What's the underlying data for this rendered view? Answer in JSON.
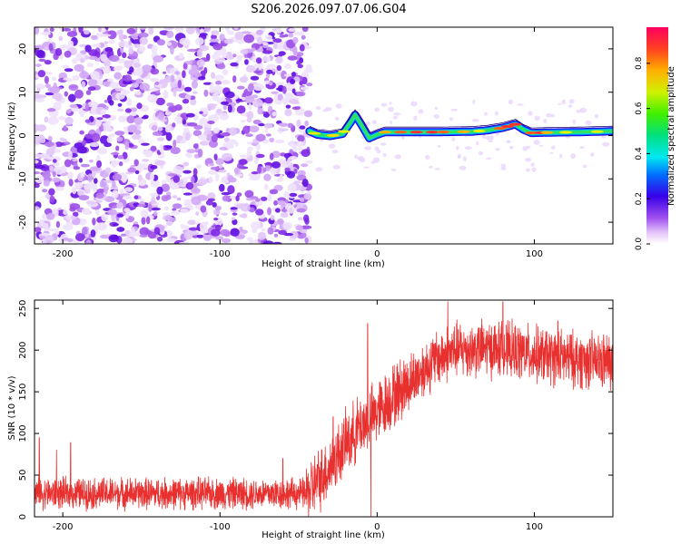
{
  "figure_title": "S206.2026.097.07.06.G04",
  "chart_data": [
    {
      "type": "heatmap",
      "title": "",
      "xlabel": "Height of straight line (km)",
      "ylabel": "Frequency (Hz)",
      "xlim": [
        -218,
        150
      ],
      "ylim": [
        -25,
        25
      ],
      "xticks": [
        -200,
        -100,
        0,
        100
      ],
      "yticks": [
        -20,
        -10,
        0,
        10,
        20
      ],
      "grid": false,
      "noise_region_x": [
        -218,
        -43
      ],
      "band": {
        "x_start": -43,
        "x_end": 150,
        "center_hz": [
          [
            -43,
            1.0
          ],
          [
            -38,
            0.2
          ],
          [
            -30,
            -0.1
          ],
          [
            -22,
            0.4
          ],
          [
            -17,
            3.0
          ],
          [
            -14,
            4.8
          ],
          [
            -10,
            2.5
          ],
          [
            -5,
            -0.6
          ],
          [
            0,
            0.2
          ],
          [
            5,
            0.8
          ],
          [
            20,
            0.8
          ],
          [
            40,
            0.8
          ],
          [
            60,
            0.9
          ],
          [
            70,
            1.2
          ],
          [
            80,
            1.8
          ],
          [
            88,
            2.6
          ],
          [
            93,
            1.4
          ],
          [
            98,
            0.6
          ],
          [
            110,
            0.7
          ],
          [
            130,
            0.8
          ],
          [
            150,
            1.0
          ]
        ],
        "half_width_hz": 0.9
      },
      "colorbar": {
        "label": "Normalized spectral amplitude",
        "range": [
          0.0,
          0.96
        ],
        "ticks": [
          0.0,
          0.2,
          0.4,
          0.6,
          0.8
        ]
      }
    },
    {
      "type": "line",
      "title": "",
      "xlabel": "Height of straight line (km)",
      "ylabel": "SNR (10 * v/v)",
      "xlim": [
        -218,
        150
      ],
      "ylim": [
        0,
        260
      ],
      "xticks": [
        -200,
        -100,
        0,
        100
      ],
      "yticks": [
        0,
        50,
        100,
        150,
        200,
        250
      ],
      "grid": false,
      "series": [
        {
          "name": "SNR",
          "color": "#e8302f",
          "trend": [
            [
              -218,
              28
            ],
            [
              -150,
              28
            ],
            [
              -80,
              28
            ],
            [
              -45,
              28
            ],
            [
              -40,
              38
            ],
            [
              -30,
              60
            ],
            [
              -20,
              88
            ],
            [
              -10,
              110
            ],
            [
              0,
              125
            ],
            [
              10,
              145
            ],
            [
              20,
              160
            ],
            [
              30,
              178
            ],
            [
              40,
              192
            ],
            [
              50,
              200
            ],
            [
              70,
              202
            ],
            [
              90,
              198
            ],
            [
              110,
              192
            ],
            [
              130,
              188
            ],
            [
              150,
              185
            ]
          ],
          "spikes": [
            [
              -215,
              95
            ],
            [
              -204,
              80
            ],
            [
              -195,
              89
            ],
            [
              -60,
              70
            ],
            [
              -28,
              120
            ],
            [
              -6,
              232
            ],
            [
              -4,
              0
            ],
            [
              45,
              258
            ],
            [
              80,
              258
            ],
            [
              115,
              235
            ]
          ]
        }
      ]
    }
  ]
}
